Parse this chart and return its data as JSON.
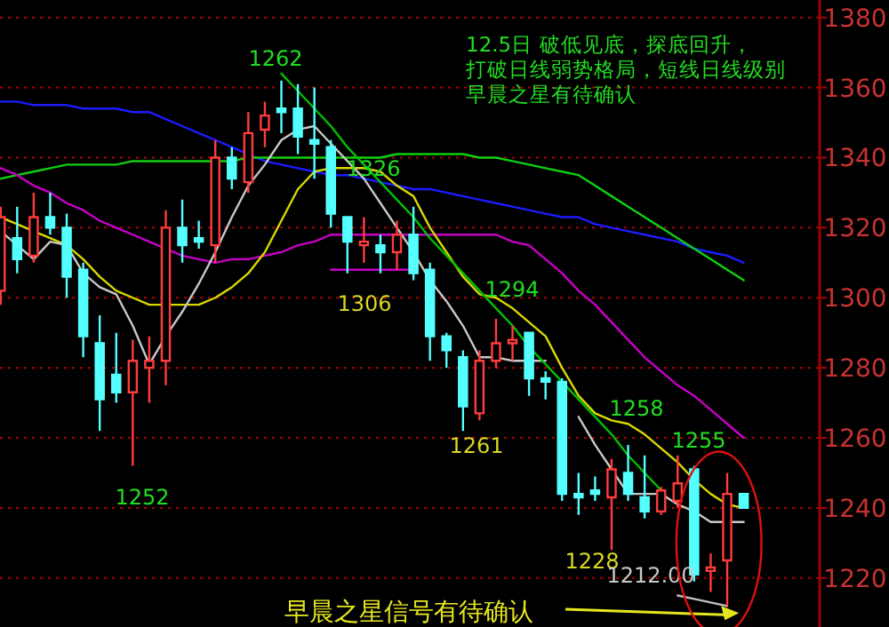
{
  "chart_data": {
    "type": "candlestick",
    "categories": [
      null,
      null,
      null,
      null,
      null,
      null,
      null,
      null,
      null,
      null,
      null,
      null,
      null,
      null,
      null,
      null,
      null,
      null,
      null,
      null,
      null,
      null,
      null,
      null,
      null,
      null,
      null,
      null,
      null,
      null,
      null,
      null,
      null,
      null,
      null,
      null,
      null,
      null,
      null,
      null,
      null,
      null,
      null,
      null,
      null,
      null
    ],
    "ohlc": [
      [
        1302,
        1326,
        1298,
        1323
      ],
      [
        1317,
        1326,
        1307,
        1311
      ],
      [
        1312,
        1330,
        1310,
        1323
      ],
      [
        1323,
        1330,
        1318,
        1320
      ],
      [
        1320,
        1324,
        1300,
        1306
      ],
      [
        1308,
        1310,
        1283,
        1289
      ],
      [
        1287,
        1295,
        1262,
        1271
      ],
      [
        1278,
        1290,
        1270,
        1273
      ],
      [
        1273,
        1288,
        1252,
        1282
      ],
      [
        1280,
        1289,
        1270,
        1282
      ],
      [
        1282,
        1325,
        1275,
        1320
      ],
      [
        1320,
        1328,
        1310,
        1315
      ],
      [
        1317,
        1322,
        1314,
        1316
      ],
      [
        1315,
        1345,
        1310,
        1340
      ],
      [
        1340,
        1343,
        1331,
        1334
      ],
      [
        1333,
        1353,
        1330,
        1347
      ],
      [
        1348,
        1356,
        1343,
        1352
      ],
      [
        1354,
        1362,
        1347,
        1353
      ],
      [
        1354,
        1361,
        1341,
        1346
      ],
      [
        1345,
        1360,
        1334,
        1344
      ],
      [
        1343,
        1345,
        1320,
        1324
      ],
      [
        1323,
        1323,
        1307,
        1316
      ],
      [
        1315,
        1323,
        1310,
        1316
      ],
      [
        1315,
        1318,
        1307,
        1313
      ],
      [
        1313,
        1322,
        1308,
        1318
      ],
      [
        1318,
        1326,
        1305,
        1307
      ],
      [
        1308,
        1310,
        1282,
        1289
      ],
      [
        1289,
        1290,
        1280,
        1285
      ],
      [
        1283,
        1285,
        1262,
        1269
      ],
      [
        1267,
        1285,
        1265,
        1282
      ],
      [
        1282,
        1294,
        1280,
        1287
      ],
      [
        1287,
        1292,
        1282,
        1288
      ],
      [
        1290,
        1290,
        1272,
        1277
      ],
      [
        1277,
        1279,
        1271,
        1276
      ],
      [
        1276,
        1277,
        1242,
        1244
      ],
      [
        1244,
        1250,
        1238,
        1243
      ],
      [
        1245,
        1249,
        1242,
        1244
      ],
      [
        1243,
        1254,
        1228,
        1251
      ],
      [
        1250,
        1258,
        1242,
        1244
      ],
      [
        1243,
        1255,
        1237,
        1239
      ],
      [
        1239,
        1246,
        1238,
        1245
      ],
      [
        1242,
        1255,
        1240,
        1247
      ],
      [
        1251,
        1252,
        1219,
        1221
      ],
      [
        1222,
        1227,
        1216,
        1223
      ],
      [
        1225,
        1250,
        1212,
        1244
      ],
      [
        1244,
        1244,
        1240,
        1240
      ]
    ],
    "series": [
      {
        "type": "line",
        "color": "#1c1cff",
        "values": [
          1356,
          1356,
          1355,
          1355,
          1355,
          1354,
          1354,
          1354,
          1353,
          1353,
          1351,
          1349,
          1347,
          1345,
          1343,
          1341,
          1339,
          1338,
          1337,
          1336,
          1335,
          1335,
          1334,
          1333,
          1332,
          1331,
          1331,
          1330,
          1329,
          1328,
          1327,
          1326,
          1325,
          1324,
          1323,
          1323,
          1321,
          1320,
          1319,
          1318,
          1317,
          1316,
          1314,
          1313,
          1312,
          1310
        ]
      },
      {
        "type": "line",
        "color": "#10d010",
        "values": [
          1334,
          1335,
          1336,
          1337,
          1338,
          1338,
          1338,
          1338,
          1339,
          1339,
          1339,
          1339,
          1339,
          1339,
          1339,
          1340,
          1340,
          1340,
          1340,
          1340,
          1340,
          1340,
          1340,
          1340,
          1341,
          1341,
          1341,
          1341,
          1341,
          1340,
          1340,
          1339,
          1338,
          1337,
          1336,
          1335,
          1332,
          1329,
          1326,
          1323,
          1320,
          1317,
          1314,
          1311,
          1308,
          1305
        ]
      },
      {
        "type": "line",
        "color": "#c800c8",
        "values": [
          1337,
          1335,
          1332,
          1330,
          1327,
          1325,
          1322,
          1320,
          1318,
          1316,
          1314,
          1312,
          1311,
          1310,
          1311,
          1311,
          1312,
          1313,
          1315,
          1316,
          1318,
          1318,
          1318,
          1318,
          1318,
          1318,
          1318,
          1318,
          1318,
          1318,
          1318,
          1316,
          1315,
          1311,
          1307,
          1302,
          1298,
          1293,
          1288,
          1283,
          1279,
          1275,
          1272,
          1268,
          1264,
          1260
        ]
      },
      {
        "type": "line",
        "color": "#d8d800",
        "values": [
          1323,
          1321,
          1319,
          1317,
          1315,
          1311,
          1306,
          1302,
          1300,
          1298,
          1298,
          1298,
          1298,
          1300,
          1303,
          1307,
          1313,
          1322,
          1331,
          1336,
          1337,
          1337,
          1337,
          1336,
          1332,
          1329,
          1320,
          1313,
          1306,
          1301,
          1300,
          1297,
          1293,
          1289,
          1280,
          1272,
          1267,
          1265,
          1264,
          1261,
          1257,
          1253,
          1248,
          1244,
          1241,
          1240
        ]
      },
      {
        "type": "line",
        "color": "#c8c8c8",
        "values": [
          1319,
          1315,
          1311,
          1316,
          1315,
          1307,
          1303,
          1301,
          1292,
          1281,
          1289,
          1296,
          1304,
          1313,
          1323,
          1332,
          1338,
          1345,
          1348,
          1349,
          1344,
          1339,
          1334,
          1327,
          1320,
          1313,
          1305,
          1299,
          1292,
          1283,
          1283,
          1282,
          1282,
          1282,
          null,
          1266,
          1258,
          1251,
          1244,
          1244,
          1244,
          1241,
          1239,
          1236,
          1236,
          1236
        ]
      },
      {
        "type": "line",
        "color": "#00c000",
        "values": [
          null,
          null,
          null,
          null,
          null,
          null,
          null,
          null,
          null,
          null,
          null,
          null,
          null,
          null,
          null,
          null,
          null,
          1364,
          1359,
          1354,
          1349,
          1343,
          1338,
          1333,
          1328,
          1323,
          1317,
          1312,
          1307,
          1302,
          1297,
          1292,
          1286,
          1281,
          1276,
          1271,
          1266,
          1261,
          1255,
          1250,
          1245,
          null,
          null,
          null,
          null,
          null
        ]
      },
      {
        "type": "line",
        "color": "#c800c8",
        "values": [
          null,
          null,
          null,
          null,
          null,
          null,
          null,
          null,
          null,
          null,
          null,
          null,
          null,
          null,
          null,
          null,
          null,
          null,
          null,
          null,
          1308,
          1308,
          1308,
          1308,
          1308,
          1308,
          null,
          null,
          null,
          null,
          null,
          null,
          null,
          null,
          null,
          null,
          null,
          null,
          null,
          null,
          null,
          null,
          null,
          null,
          null,
          null
        ]
      },
      {
        "type": "line",
        "color": "#c0c0c0",
        "values": [
          null,
          null,
          null,
          null,
          null,
          null,
          null,
          null,
          null,
          null,
          null,
          null,
          null,
          null,
          null,
          null,
          null,
          null,
          null,
          null,
          null,
          null,
          null,
          null,
          null,
          null,
          null,
          null,
          null,
          null,
          null,
          null,
          null,
          null,
          null,
          null,
          null,
          null,
          null,
          null,
          null,
          1215,
          1214,
          1213,
          1212,
          null
        ]
      }
    ],
    "ylim": [
      1206,
      1385
    ],
    "yticks": [
      1220,
      1240,
      1260,
      1280,
      1300,
      1320,
      1340,
      1360,
      1380
    ],
    "grid": "y",
    "annotations": [
      "1262",
      "1326",
      "1306",
      "1294",
      "1261",
      "1252",
      "1258",
      "1255",
      "1228",
      "1212.00",
      "12.5日  破低见底，探底回升，",
      "打破日线弱势格局，短线日线级别",
      "早晨之星有待确认",
      "早晨之星信号有待确认"
    ]
  }
}
